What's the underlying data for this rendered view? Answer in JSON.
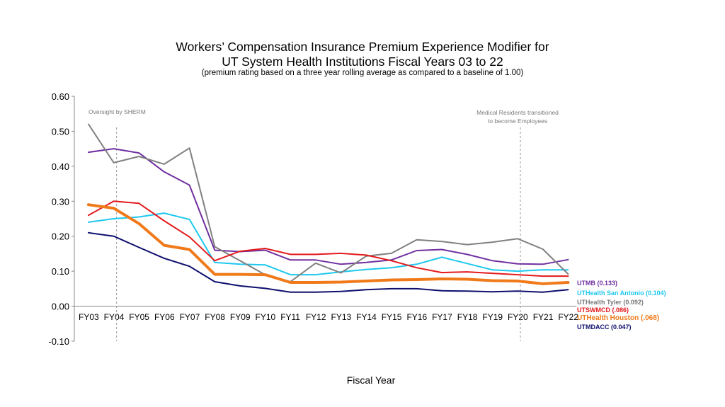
{
  "chart_data": {
    "type": "line",
    "title": "Workers’ Compensation Insurance Premium Experience Modifier for",
    "title_line2": "UT System Health Institutions Fiscal Years 03 to 22",
    "subtitle": "(premium rating based on a three year rolling average as compared to a baseline of 1.00)",
    "xlabel": "Fiscal Year",
    "ylabel": "",
    "ylim": [
      -0.1,
      0.6
    ],
    "yticks": [
      "0.60",
      "0.50",
      "0.40",
      "0.30",
      "0.20",
      "0.10",
      "0.00",
      "-0.10"
    ],
    "categories": [
      "FY03",
      "FY04",
      "FY05",
      "FY06",
      "FY07",
      "FY08",
      "FY09",
      "FY10",
      "FY11",
      "FY12",
      "FY13",
      "FY14",
      "FY15",
      "FY16",
      "FY17",
      "FY18",
      "FY19",
      "FY20",
      "FY21",
      "FY22"
    ],
    "grid": false,
    "legend": "right end labels",
    "series": [
      {
        "name": "UTMB (0.133)",
        "color": "#7030a0",
        "values": [
          0.44,
          0.45,
          0.438,
          0.384,
          0.346,
          0.16,
          0.156,
          0.16,
          0.132,
          0.132,
          0.12,
          0.125,
          0.132,
          0.159,
          0.162,
          0.148,
          0.13,
          0.121,
          0.12,
          0.133
        ]
      },
      {
        "name": "UTHealth San Antonio (0.104)",
        "color": "#1ec8ee",
        "values": [
          0.24,
          0.25,
          0.255,
          0.266,
          0.248,
          0.125,
          0.12,
          0.118,
          0.09,
          0.09,
          0.098,
          0.105,
          0.11,
          0.12,
          0.14,
          0.122,
          0.104,
          0.1,
          0.104,
          0.104
        ]
      },
      {
        "name": "UTHealth Tyler (0.092)",
        "color": "#808080",
        "values": [
          0.52,
          0.41,
          0.428,
          0.406,
          0.452,
          0.17,
          0.13,
          0.09,
          0.07,
          0.123,
          0.095,
          0.143,
          0.151,
          0.19,
          0.185,
          0.176,
          0.183,
          0.193,
          0.163,
          0.092
        ]
      },
      {
        "name": "UTSWMCD (.086)",
        "color": "#e41a1c",
        "values": [
          0.26,
          0.3,
          0.294,
          0.244,
          0.198,
          0.13,
          0.157,
          0.165,
          0.148,
          0.148,
          0.151,
          0.146,
          0.13,
          0.11,
          0.096,
          0.098,
          0.094,
          0.09,
          0.086,
          0.086
        ]
      },
      {
        "name": "UTHealth Houston (.068)",
        "color": "#f07a1a",
        "values": [
          0.29,
          0.28,
          0.236,
          0.174,
          0.162,
          0.091,
          0.091,
          0.09,
          0.068,
          0.068,
          0.069,
          0.072,
          0.075,
          0.076,
          0.078,
          0.077,
          0.073,
          0.072,
          0.064,
          0.068
        ]
      },
      {
        "name": "UTMDACC (0.047)",
        "color": "#0e0e6e",
        "values": [
          0.21,
          0.2,
          0.168,
          0.137,
          0.114,
          0.07,
          0.058,
          0.051,
          0.04,
          0.04,
          0.042,
          0.047,
          0.05,
          0.05,
          0.044,
          0.043,
          0.041,
          0.043,
          0.04,
          0.047
        ]
      }
    ],
    "annotations": [
      {
        "text": "Oversight by  SHERM",
        "at_category": "FY04"
      },
      {
        "text": "Medical Residents transitioned",
        "text2": "to become Employees",
        "at_category": "FY20"
      }
    ]
  }
}
